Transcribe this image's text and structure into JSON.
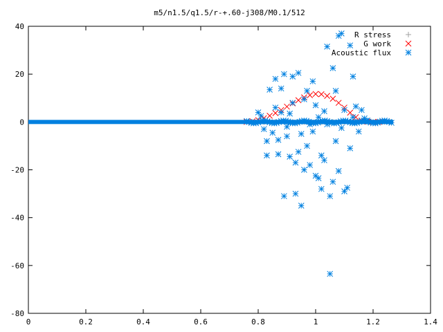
{
  "chart_data": {
    "type": "scatter",
    "title": "m5/n1.5/q1.5/r-+.60-j308/M0.1/512",
    "xlabel": "",
    "ylabel": "",
    "xlim": [
      0,
      1.4
    ],
    "ylim": [
      -80,
      40
    ],
    "x_ticks": [
      "0",
      "0.2",
      "0.4",
      "0.6",
      "0.8",
      "1",
      "1.2",
      "1.4"
    ],
    "y_ticks": [
      "40",
      "20",
      "0",
      "-20",
      "-40",
      "-60",
      "-80"
    ],
    "x_tick_values": [
      0,
      0.2,
      0.4,
      0.6,
      0.8,
      1,
      1.2,
      1.4
    ],
    "y_tick_values": [
      40,
      20,
      0,
      -20,
      -40,
      -60,
      -80
    ],
    "grid": false,
    "legend_position": "top-right",
    "legend": [
      {
        "label": "R stress",
        "marker": "plus",
        "color": "#a0a0a0"
      },
      {
        "label": "G work",
        "marker": "cross",
        "color": "#ff0000"
      },
      {
        "label": "Acoustic flux",
        "marker": "star",
        "color": "#0080e0"
      }
    ],
    "series": [
      {
        "name": "R stress",
        "marker": "plus",
        "color": "#a0a0a0",
        "x_range": [
          0.76,
          1.27
        ],
        "points": [
          [
            0.76,
            0
          ],
          [
            0.78,
            0
          ],
          [
            0.8,
            0
          ],
          [
            0.82,
            0
          ],
          [
            0.84,
            0
          ],
          [
            0.86,
            0
          ],
          [
            0.88,
            0
          ],
          [
            0.9,
            0
          ],
          [
            0.92,
            0
          ],
          [
            0.94,
            0
          ],
          [
            0.96,
            0
          ],
          [
            0.98,
            0
          ],
          [
            1.0,
            0
          ],
          [
            1.02,
            0
          ],
          [
            1.04,
            0
          ],
          [
            1.06,
            0
          ],
          [
            1.08,
            0
          ],
          [
            1.1,
            0
          ],
          [
            1.12,
            0
          ],
          [
            1.14,
            0
          ],
          [
            1.16,
            0
          ],
          [
            1.18,
            0
          ],
          [
            1.2,
            0
          ],
          [
            1.22,
            0
          ],
          [
            1.24,
            0
          ],
          [
            1.26,
            0
          ]
        ]
      },
      {
        "name": "G work",
        "marker": "cross",
        "color": "#ff0000",
        "points": [
          [
            0.76,
            0
          ],
          [
            0.78,
            0.3
          ],
          [
            0.8,
            0.8
          ],
          [
            0.82,
            1.6
          ],
          [
            0.84,
            2.6
          ],
          [
            0.86,
            3.7
          ],
          [
            0.88,
            5.0
          ],
          [
            0.9,
            6.4
          ],
          [
            0.92,
            7.8
          ],
          [
            0.94,
            9.1
          ],
          [
            0.96,
            10.3
          ],
          [
            0.98,
            11.2
          ],
          [
            1.0,
            11.7
          ],
          [
            1.02,
            11.6
          ],
          [
            1.04,
            10.9
          ],
          [
            1.06,
            9.7
          ],
          [
            1.08,
            8.0
          ],
          [
            1.1,
            6.0
          ],
          [
            1.12,
            3.9
          ],
          [
            1.14,
            2.0
          ],
          [
            1.16,
            0.6
          ],
          [
            1.18,
            0.1
          ],
          [
            1.2,
            0
          ],
          [
            1.22,
            0
          ]
        ]
      },
      {
        "name": "Acoustic flux",
        "marker": "star",
        "color": "#0080e0",
        "baseline_x_range": [
          0,
          1.27
        ],
        "points": [
          [
            0.8,
            4.0
          ],
          [
            0.81,
            2.5
          ],
          [
            0.82,
            -3.0
          ],
          [
            0.83,
            -8.0
          ],
          [
            0.83,
            -14.0
          ],
          [
            0.84,
            13.5
          ],
          [
            0.85,
            -4.5
          ],
          [
            0.86,
            6.0
          ],
          [
            0.86,
            18.0
          ],
          [
            0.87,
            -13.5
          ],
          [
            0.87,
            -7.5
          ],
          [
            0.88,
            14.0
          ],
          [
            0.88,
            4.0
          ],
          [
            0.89,
            20.0
          ],
          [
            0.89,
            -31.0
          ],
          [
            0.9,
            -6.0
          ],
          [
            0.9,
            -2.0
          ],
          [
            0.91,
            3.5
          ],
          [
            0.91,
            -14.5
          ],
          [
            0.92,
            19.0
          ],
          [
            0.92,
            8.0
          ],
          [
            0.93,
            -17.0
          ],
          [
            0.93,
            -30.0
          ],
          [
            0.94,
            20.5
          ],
          [
            0.94,
            -12.5
          ],
          [
            0.95,
            -35.0
          ],
          [
            0.95,
            -5.0
          ],
          [
            0.96,
            9.5
          ],
          [
            0.96,
            -20.0
          ],
          [
            0.97,
            13.0
          ],
          [
            0.97,
            -10.0
          ],
          [
            0.98,
            -1.0
          ],
          [
            0.98,
            -18.0
          ],
          [
            0.99,
            17.0
          ],
          [
            0.99,
            -4.0
          ],
          [
            1.0,
            -22.5
          ],
          [
            1.0,
            7.0
          ],
          [
            1.01,
            -23.5
          ],
          [
            1.01,
            2.0
          ],
          [
            1.02,
            -14.0
          ],
          [
            1.02,
            -28.0
          ],
          [
            1.03,
            -16.0
          ],
          [
            1.03,
            4.5
          ],
          [
            1.04,
            31.5
          ],
          [
            1.04,
            -1.0
          ],
          [
            1.05,
            -31.0
          ],
          [
            1.05,
            -63.5
          ],
          [
            1.06,
            22.5
          ],
          [
            1.06,
            -25.0
          ],
          [
            1.07,
            13.0
          ],
          [
            1.07,
            -8.0
          ],
          [
            1.08,
            36.0
          ],
          [
            1.08,
            -20.5
          ],
          [
            1.09,
            37.0
          ],
          [
            1.09,
            -2.5
          ],
          [
            1.1,
            -29.0
          ],
          [
            1.1,
            5.0
          ],
          [
            1.11,
            -27.5
          ],
          [
            1.12,
            32.0
          ],
          [
            1.12,
            -11.0
          ],
          [
            1.13,
            19.0
          ],
          [
            1.13,
            2.0
          ],
          [
            1.14,
            6.5
          ],
          [
            1.15,
            -4.0
          ],
          [
            1.16,
            5.0
          ],
          [
            1.17,
            1.5
          ],
          [
            1.18,
            0.6
          ]
        ]
      }
    ]
  }
}
